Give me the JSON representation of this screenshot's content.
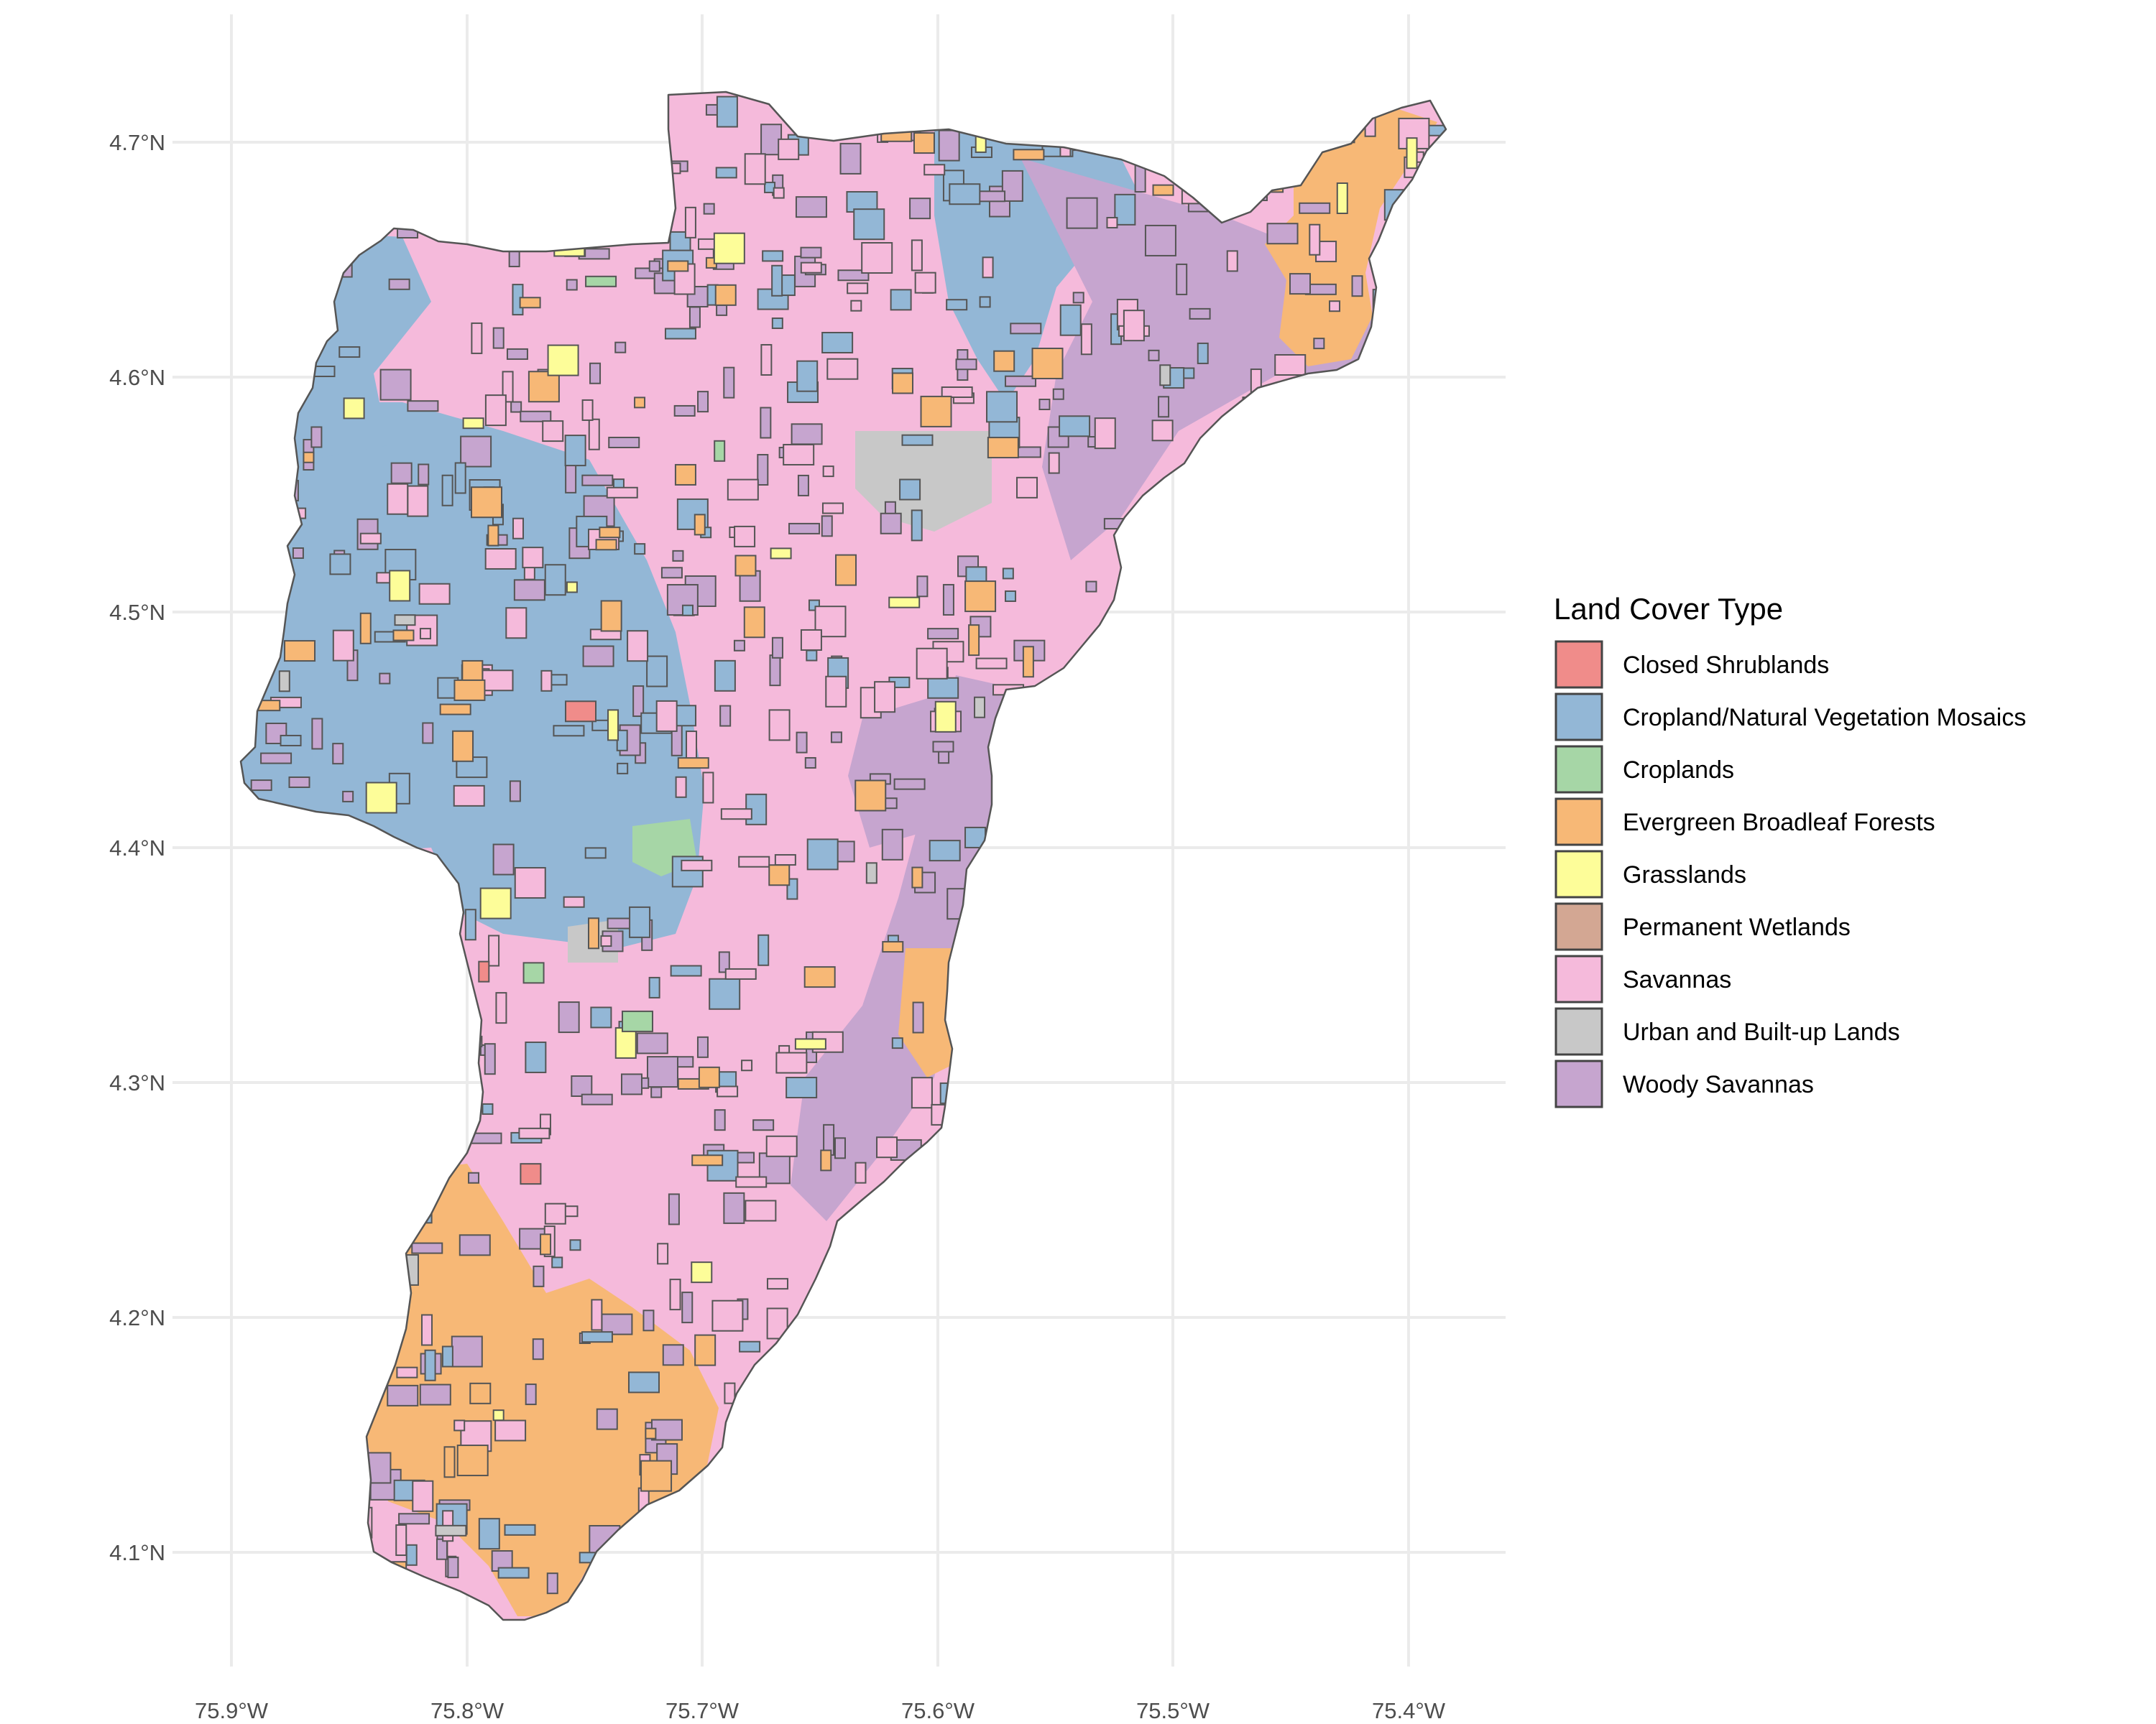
{
  "map": {
    "legend": {
      "title": "Land Cover Type",
      "items": [
        {
          "label": "Closed Shrublands",
          "color": "#F08C8A"
        },
        {
          "label": "Cropland/Natural Vegetation Mosaics",
          "color": "#93B7D6"
        },
        {
          "label": "Croplands",
          "color": "#A6D6A6"
        },
        {
          "label": "Evergreen Broadleaf Forests",
          "color": "#F7B876"
        },
        {
          "label": "Grasslands",
          "color": "#FDFD99"
        },
        {
          "label": "Permanent Wetlands",
          "color": "#D3A793"
        },
        {
          "label": "Savannas",
          "color": "#F5BADB"
        },
        {
          "label": "Urban and Built-up Lands",
          "color": "#C8C8C8"
        },
        {
          "label": "Woody Savannas",
          "color": "#C6A5CF"
        }
      ]
    },
    "x_ticks": [
      "75.9°W",
      "75.8°W",
      "75.7°W",
      "75.6°W",
      "75.5°W",
      "75.4°W"
    ],
    "y_ticks": [
      "4.7°N",
      "4.6°N",
      "4.5°N",
      "4.4°N",
      "4.3°N",
      "4.2°N",
      "4.1°N"
    ]
  }
}
